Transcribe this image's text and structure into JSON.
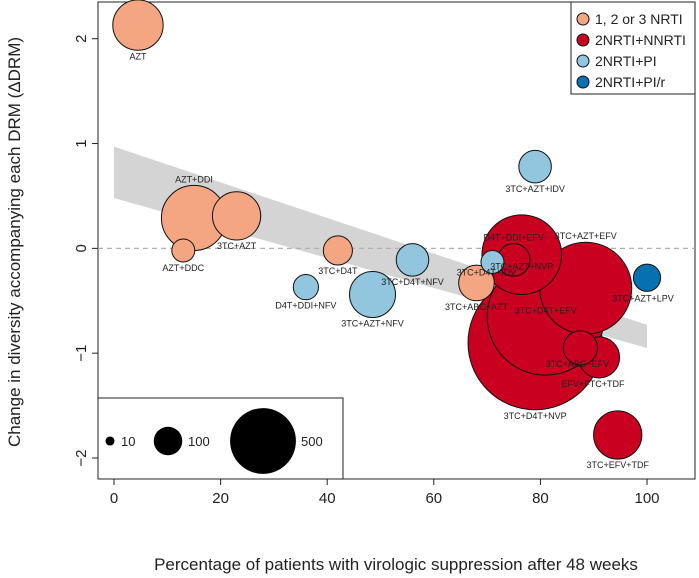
{
  "chart_data": {
    "type": "scatter",
    "xlabel": "Percentage of patients with virologic suppression after 48 weeks",
    "ylabel": "Change in diversity accompanying each DRM (ΔDRM)",
    "xlim": [
      -3,
      109
    ],
    "ylim": [
      -2.2,
      2.35
    ],
    "x_ticks": [
      0,
      20,
      40,
      60,
      80,
      100
    ],
    "y_ticks": [
      -2,
      -1,
      0,
      1,
      2
    ],
    "x_tick_labels": [
      "0",
      "20",
      "40",
      "60",
      "80",
      "100"
    ],
    "y_tick_labels": [
      "−2",
      "−1",
      "0",
      "1",
      "2"
    ],
    "reference_line_y": 0,
    "trend": {
      "line": [
        [
          0,
          0.72
        ],
        [
          100,
          -0.84
        ]
      ],
      "band_upper": [
        [
          0,
          0.97
        ],
        [
          100,
          -0.73
        ]
      ],
      "band_lower": [
        [
          0,
          0.48
        ],
        [
          100,
          -0.95
        ]
      ],
      "color": "#d4d4d4"
    },
    "legend": {
      "position": "top-right",
      "entries": [
        {
          "label": "1, 2 or 3 NRTI",
          "color": "#f4a582"
        },
        {
          "label": "2NRTI+NNRTI",
          "color": "#ca0020"
        },
        {
          "label": "2NRTI+PI",
          "color": "#92c5de"
        },
        {
          "label": "2NRTI+PI/r",
          "color": "#0571b0"
        }
      ]
    },
    "size_legend": {
      "position": "bottom-left",
      "entries": [
        {
          "label": "10",
          "n": 10
        },
        {
          "label": "100",
          "n": 100
        },
        {
          "label": "500",
          "n": 500
        }
      ]
    },
    "points": [
      {
        "label": "AZT",
        "x": 4.5,
        "y": 2.13,
        "n": 120,
        "group": 0
      },
      {
        "label": "AZT+DDI",
        "x": 15,
        "y": 0.29,
        "n": 200,
        "group": 0
      },
      {
        "label": "3TC+AZT",
        "x": 23,
        "y": 0.31,
        "n": 110,
        "group": 0
      },
      {
        "label": "AZT+DDC",
        "x": 13,
        "y": -0.02,
        "n": 25,
        "group": 0
      },
      {
        "label": "3TC+D4T",
        "x": 42,
        "y": -0.02,
        "n": 40,
        "group": 0
      },
      {
        "label": "3TC+ABC+AZT",
        "x": 68,
        "y": -0.33,
        "n": 60,
        "group": 0
      },
      {
        "label": "3TC+AZT+IDV",
        "x": 79,
        "y": 0.78,
        "n": 50,
        "group": 2
      },
      {
        "label": "D4T+DDI+NFV",
        "x": 36,
        "y": -0.37,
        "n": 30,
        "group": 2
      },
      {
        "label": "3TC+D4T+NFV",
        "x": 56,
        "y": -0.11,
        "n": 50,
        "group": 2
      },
      {
        "label": "3TC+AZT+NFV",
        "x": 48.5,
        "y": -0.44,
        "n": 100,
        "group": 2
      },
      {
        "label": "3TC+D4T+IDV",
        "x": 71,
        "y": -0.13,
        "n": 25,
        "group": 2
      },
      {
        "label": "3TC+AZT+LPV",
        "x": 100,
        "y": -0.28,
        "n": 35,
        "group": 3
      },
      {
        "label": "D4T+DDI+EFV",
        "x": 75,
        "y": -0.11,
        "n": 50,
        "group": 1
      },
      {
        "label": "3TC+AZT+NVP",
        "x": 76.5,
        "y": -0.06,
        "n": 300,
        "group": 1
      },
      {
        "label": "3TC+AZT+EFV",
        "x": 88.5,
        "y": -0.38,
        "n": 400,
        "group": 1
      },
      {
        "label": "3TC+D4T+EFV",
        "x": 81,
        "y": -0.65,
        "n": 650,
        "group": 1
      },
      {
        "label": "3TC+D4T+NVP",
        "x": 79,
        "y": -0.9,
        "n": 850,
        "group": 1
      },
      {
        "label": "3TC+ABC+EFV",
        "x": 87.5,
        "y": -0.95,
        "n": 55,
        "group": 1
      },
      {
        "label": "EFV+FTC+TDF",
        "x": 91,
        "y": -1.04,
        "n": 80,
        "group": 1
      },
      {
        "label": "3TC+EFV+TDF",
        "x": 94.5,
        "y": -1.78,
        "n": 110,
        "group": 1
      }
    ]
  }
}
